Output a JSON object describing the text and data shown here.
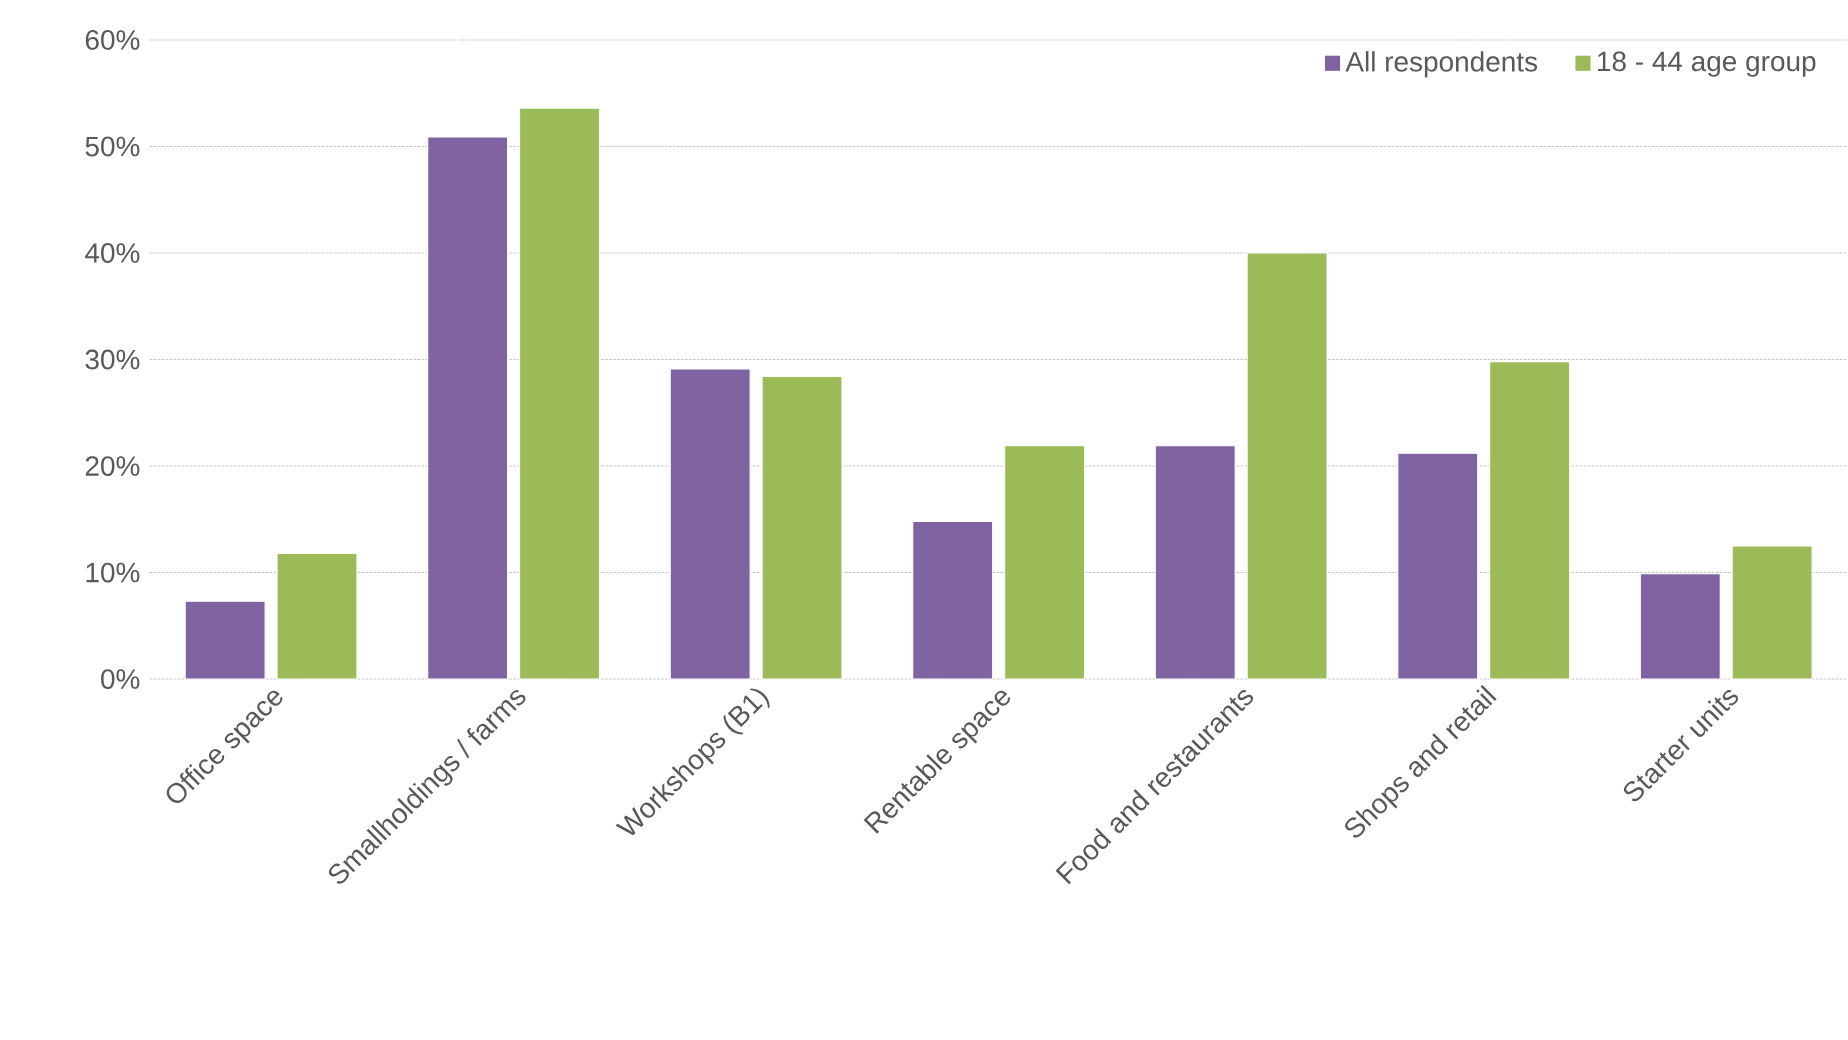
{
  "chart_data": {
    "type": "bar",
    "categories": [
      "Office space",
      "Smallholdings / farms",
      "Workshops (B1)",
      "Rentable space",
      "Food and restaurants",
      "Shops and retail",
      "Starter units"
    ],
    "series": [
      {
        "name": "All respondents",
        "color": "#8064a2",
        "values": [
          7.3,
          50.9,
          29.1,
          14.8,
          21.9,
          21.2,
          9.9
        ]
      },
      {
        "name": "18 - 44 age group",
        "color": "#9bbb59",
        "values": [
          11.8,
          53.6,
          28.4,
          21.9,
          40.0,
          29.8,
          12.5
        ]
      }
    ],
    "ylim": [
      0,
      60
    ],
    "yticks": [
      {
        "value": 0,
        "label": "0%"
      },
      {
        "value": 10,
        "label": "10%"
      },
      {
        "value": 20,
        "label": "20%"
      },
      {
        "value": 30,
        "label": "30%"
      },
      {
        "value": 40,
        "label": "40%"
      },
      {
        "value": 50,
        "label": "50%"
      },
      {
        "value": 60,
        "label": "60%"
      }
    ],
    "grid": "y",
    "legend": "top right"
  }
}
